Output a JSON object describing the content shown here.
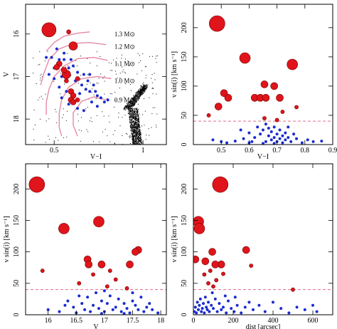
{
  "colors": {
    "big_star": "#e0141b",
    "small_star": "#1a2ccf",
    "track": "#e68aa3",
    "field": "#000000",
    "threshold": "#e06c86"
  },
  "chart_data": [
    {
      "type": "scatter",
      "panel": "top-left",
      "xlabel": "V−I",
      "ylabel": "V",
      "x_scale": "log",
      "xlim": [
        0.4,
        1.2
      ],
      "ylim": [
        18.6,
        15.3
      ],
      "xticks": [
        "0.5",
        "1"
      ],
      "yticks": [
        "16",
        "17",
        "18"
      ],
      "track_labels": [
        "1.3 M⊙",
        "1.2 M⊙",
        "1.1 M⊙",
        "1.0 M⊙",
        "0.9 M⊙"
      ],
      "tracks": [
        [
          [
            0.66,
            15.95
          ],
          [
            0.6,
            15.98
          ],
          [
            0.54,
            16.05
          ],
          [
            0.5,
            16.2
          ],
          [
            0.47,
            16.4
          ]
        ],
        [
          [
            0.75,
            16.25
          ],
          [
            0.66,
            16.2
          ],
          [
            0.58,
            16.22
          ],
          [
            0.52,
            16.35
          ],
          [
            0.48,
            16.6
          ],
          [
            0.46,
            16.95
          ],
          [
            0.45,
            17.2
          ]
        ],
        [
          [
            0.76,
            16.62
          ],
          [
            0.68,
            16.55
          ],
          [
            0.6,
            16.58
          ],
          [
            0.54,
            16.75
          ],
          [
            0.5,
            17.0
          ],
          [
            0.48,
            17.3
          ],
          [
            0.47,
            17.6
          ],
          [
            0.47,
            17.9
          ]
        ],
        [
          [
            0.78,
            17.05
          ],
          [
            0.7,
            17.0
          ],
          [
            0.62,
            17.05
          ],
          [
            0.56,
            17.25
          ],
          [
            0.53,
            17.55
          ],
          [
            0.52,
            17.85
          ],
          [
            0.52,
            18.2
          ],
          [
            0.53,
            18.4
          ]
        ],
        [
          [
            0.75,
            17.55
          ],
          [
            0.68,
            17.48
          ],
          [
            0.62,
            17.58
          ],
          [
            0.58,
            17.85
          ],
          [
            0.58,
            18.15
          ],
          [
            0.6,
            18.4
          ]
        ]
      ],
      "big_stars": [
        {
          "x": 0.48,
          "y": 15.9,
          "vsini": 207
        },
        {
          "x": 0.58,
          "y": 16.28,
          "vsini": 148
        },
        {
          "x": 0.55,
          "y": 16.95,
          "vsini": 137
        },
        {
          "x": 0.56,
          "y": 15.95,
          "vsini": 45
        },
        {
          "x": 0.52,
          "y": 16.7,
          "vsini": 88
        },
        {
          "x": 0.51,
          "y": 16.78,
          "vsini": 85
        },
        {
          "x": 0.54,
          "y": 16.85,
          "vsini": 80
        },
        {
          "x": 0.57,
          "y": 17.35,
          "vsini": 103
        },
        {
          "x": 0.58,
          "y": 17.45,
          "vsini": 80
        },
        {
          "x": 0.57,
          "y": 17.55,
          "vsini": 80
        },
        {
          "x": 0.58,
          "y": 17.6,
          "vsini": 100
        },
        {
          "x": 0.6,
          "y": 17.55,
          "vsini": 64
        },
        {
          "x": 0.6,
          "y": 17.05,
          "vsini": 56
        },
        {
          "x": 0.55,
          "y": 17.1,
          "vsini": 50
        }
      ],
      "small_stars": [
        [
          0.47,
          16.55
        ],
        [
          0.49,
          16.55
        ],
        [
          0.52,
          16.6
        ],
        [
          0.54,
          16.6
        ],
        [
          0.5,
          16.8
        ],
        [
          0.48,
          16.95
        ],
        [
          0.53,
          17.0
        ],
        [
          0.56,
          16.8
        ],
        [
          0.58,
          16.75
        ],
        [
          0.6,
          16.9
        ],
        [
          0.63,
          16.95
        ],
        [
          0.66,
          16.95
        ],
        [
          0.62,
          17.2
        ],
        [
          0.64,
          17.3
        ],
        [
          0.66,
          17.35
        ],
        [
          0.69,
          17.35
        ],
        [
          0.7,
          17.45
        ],
        [
          0.72,
          17.5
        ],
        [
          0.55,
          17.35
        ],
        [
          0.53,
          17.5
        ],
        [
          0.56,
          17.65
        ],
        [
          0.6,
          17.75
        ],
        [
          0.63,
          17.8
        ],
        [
          0.52,
          17.25
        ],
        [
          0.5,
          17.05
        ],
        [
          0.59,
          17.1
        ],
        [
          0.61,
          17.4
        ],
        [
          0.67,
          17.6
        ],
        [
          0.7,
          17.7
        ],
        [
          0.74,
          17.6
        ],
        [
          0.76,
          17.55
        ],
        [
          0.57,
          16.6
        ],
        [
          0.51,
          16.35
        ],
        [
          0.54,
          16.45
        ],
        [
          0.65,
          17.1
        ],
        [
          0.68,
          17.2
        ]
      ]
    },
    {
      "type": "scatter",
      "panel": "top-right",
      "xlabel": "V−I",
      "ylabel": "v sin(i) [km s⁻¹]",
      "xlim": [
        0.4,
        0.9
      ],
      "ylim": [
        0,
        240
      ],
      "xticks": [
        "0.5",
        "0.6",
        "0.7",
        "0.8",
        "0.9"
      ],
      "yticks": [
        "0",
        "50",
        "100",
        "150",
        "200"
      ],
      "threshold": 40,
      "big_stars": [
        {
          "x": 0.485,
          "y": 207,
          "size": 3
        },
        {
          "x": 0.585,
          "y": 148,
          "size": 2
        },
        {
          "x": 0.755,
          "y": 137,
          "size": 2
        },
        {
          "x": 0.51,
          "y": 88,
          "size": 1
        },
        {
          "x": 0.525,
          "y": 80,
          "size": 1
        },
        {
          "x": 0.49,
          "y": 65,
          "size": 1
        },
        {
          "x": 0.62,
          "y": 80,
          "size": 1
        },
        {
          "x": 0.64,
          "y": 80,
          "size": 1
        },
        {
          "x": 0.655,
          "y": 103,
          "size": 1
        },
        {
          "x": 0.66,
          "y": 80,
          "size": 1
        },
        {
          "x": 0.69,
          "y": 100,
          "size": 1
        },
        {
          "x": 0.71,
          "y": 80,
          "size": 1
        },
        {
          "x": 0.455,
          "y": 50,
          "size": 0
        },
        {
          "x": 0.655,
          "y": 45,
          "size": 0
        },
        {
          "x": 0.7,
          "y": 42,
          "size": 0
        },
        {
          "x": 0.72,
          "y": 56,
          "size": 0
        },
        {
          "x": 0.77,
          "y": 64,
          "size": 0
        }
      ],
      "small_stars": [
        [
          0.47,
          8
        ],
        [
          0.5,
          5
        ],
        [
          0.52,
          3
        ],
        [
          0.55,
          6
        ],
        [
          0.58,
          10
        ],
        [
          0.6,
          20
        ],
        [
          0.61,
          5
        ],
        [
          0.62,
          12
        ],
        [
          0.63,
          30
        ],
        [
          0.64,
          18
        ],
        [
          0.65,
          25
        ],
        [
          0.66,
          35
        ],
        [
          0.66,
          5
        ],
        [
          0.67,
          15
        ],
        [
          0.67,
          28
        ],
        [
          0.68,
          8
        ],
        [
          0.68,
          22
        ],
        [
          0.69,
          12
        ],
        [
          0.69,
          30
        ],
        [
          0.7,
          5
        ],
        [
          0.7,
          18
        ],
        [
          0.71,
          25
        ],
        [
          0.71,
          10
        ],
        [
          0.72,
          15
        ],
        [
          0.72,
          3
        ],
        [
          0.73,
          20
        ],
        [
          0.73,
          8
        ],
        [
          0.74,
          12
        ],
        [
          0.75,
          5
        ],
        [
          0.76,
          18
        ],
        [
          0.77,
          10
        ],
        [
          0.79,
          3
        ],
        [
          0.81,
          8
        ],
        [
          0.83,
          5
        ],
        [
          0.86,
          6
        ],
        [
          0.6,
          3
        ],
        [
          0.57,
          25
        ],
        [
          0.65,
          2
        ],
        [
          0.69,
          2
        ],
        [
          0.74,
          30
        ]
      ]
    },
    {
      "type": "scatter",
      "panel": "bottom-left",
      "xlabel": "V",
      "ylabel": "v sin(i) [km s⁻¹]",
      "xlim": [
        15.6,
        18.1
      ],
      "ylim": [
        0,
        240
      ],
      "xticks": [
        "16",
        "16.5",
        "17",
        "17.5",
        "18"
      ],
      "yticks": [
        "0",
        "50",
        "100",
        "150",
        "200"
      ],
      "threshold": 40,
      "big_stars": [
        {
          "x": 15.8,
          "y": 207,
          "size": 3
        },
        {
          "x": 16.9,
          "y": 148,
          "size": 2
        },
        {
          "x": 16.28,
          "y": 137,
          "size": 2
        },
        {
          "x": 17.6,
          "y": 103,
          "size": 1
        },
        {
          "x": 17.55,
          "y": 100,
          "size": 1
        },
        {
          "x": 16.7,
          "y": 88,
          "size": 1
        },
        {
          "x": 16.72,
          "y": 80,
          "size": 1
        },
        {
          "x": 16.95,
          "y": 80,
          "size": 1
        },
        {
          "x": 17.45,
          "y": 80,
          "size": 1
        },
        {
          "x": 15.9,
          "y": 70,
          "size": 0
        },
        {
          "x": 16.8,
          "y": 64,
          "size": 0
        },
        {
          "x": 17.1,
          "y": 70,
          "size": 0
        },
        {
          "x": 17.2,
          "y": 56,
          "size": 0
        },
        {
          "x": 16.55,
          "y": 50,
          "size": 0
        },
        {
          "x": 17.05,
          "y": 45,
          "size": 0
        },
        {
          "x": 17.4,
          "y": 42,
          "size": 0
        }
      ],
      "small_stars": [
        [
          16.0,
          8
        ],
        [
          16.2,
          5
        ],
        [
          16.35,
          22
        ],
        [
          16.45,
          12
        ],
        [
          16.5,
          3
        ],
        [
          16.6,
          18
        ],
        [
          16.65,
          8
        ],
        [
          16.7,
          28
        ],
        [
          16.75,
          5
        ],
        [
          16.8,
          15
        ],
        [
          16.85,
          35
        ],
        [
          16.9,
          10
        ],
        [
          16.95,
          22
        ],
        [
          17.0,
          5
        ],
        [
          17.05,
          18
        ],
        [
          17.1,
          30
        ],
        [
          17.15,
          8
        ],
        [
          17.2,
          12
        ],
        [
          17.25,
          25
        ],
        [
          17.3,
          5
        ],
        [
          17.35,
          18
        ],
        [
          17.4,
          10
        ],
        [
          17.45,
          3
        ],
        [
          17.5,
          22
        ],
        [
          17.55,
          15
        ],
        [
          17.6,
          8
        ],
        [
          17.65,
          28
        ],
        [
          17.7,
          5
        ],
        [
          17.75,
          12
        ],
        [
          17.85,
          8
        ],
        [
          17.95,
          3
        ],
        [
          16.3,
          15
        ],
        [
          16.55,
          30
        ],
        [
          17.0,
          38
        ],
        [
          17.5,
          35
        ],
        [
          17.8,
          18
        ],
        [
          16.95,
          2
        ],
        [
          17.35,
          2
        ]
      ]
    },
    {
      "type": "scatter",
      "panel": "bottom-right",
      "xlabel": "dist [arcsec]",
      "ylabel": "v sin(i) [km s⁻¹]",
      "xlim": [
        0,
        700
      ],
      "ylim": [
        0,
        240
      ],
      "xticks": [
        "0",
        "200",
        "400",
        "600"
      ],
      "yticks": [
        "0",
        "50",
        "100",
        "150",
        "200"
      ],
      "threshold": 40,
      "big_stars": [
        {
          "x": 135,
          "y": 207,
          "size": 3
        },
        {
          "x": 25,
          "y": 148,
          "size": 2
        },
        {
          "x": 30,
          "y": 137,
          "size": 2
        },
        {
          "x": 265,
          "y": 103,
          "size": 1
        },
        {
          "x": 95,
          "y": 100,
          "size": 1
        },
        {
          "x": 10,
          "y": 88,
          "size": 1
        },
        {
          "x": 60,
          "y": 85,
          "size": 1
        },
        {
          "x": 140,
          "y": 80,
          "size": 1
        },
        {
          "x": 110,
          "y": 80,
          "size": 1
        },
        {
          "x": 85,
          "y": 70,
          "size": 0
        },
        {
          "x": 55,
          "y": 64,
          "size": 0
        },
        {
          "x": 150,
          "y": 65,
          "size": 0
        },
        {
          "x": 290,
          "y": 78,
          "size": 0
        },
        {
          "x": 115,
          "y": 55,
          "size": 0
        },
        {
          "x": 75,
          "y": 50,
          "size": 0
        },
        {
          "x": 100,
          "y": 45,
          "size": 0
        },
        {
          "x": 500,
          "y": 40,
          "size": 0
        }
      ],
      "small_stars": [
        [
          5,
          5
        ],
        [
          10,
          12
        ],
        [
          15,
          3
        ],
        [
          20,
          20
        ],
        [
          25,
          8
        ],
        [
          30,
          15
        ],
        [
          35,
          25
        ],
        [
          40,
          5
        ],
        [
          45,
          10
        ],
        [
          50,
          18
        ],
        [
          55,
          3
        ],
        [
          60,
          28
        ],
        [
          65,
          12
        ],
        [
          70,
          8
        ],
        [
          75,
          20
        ],
        [
          80,
          5
        ],
        [
          90,
          15
        ],
        [
          100,
          10
        ],
        [
          110,
          25
        ],
        [
          120,
          5
        ],
        [
          130,
          18
        ],
        [
          140,
          8
        ],
        [
          150,
          12
        ],
        [
          165,
          3
        ],
        [
          175,
          22
        ],
        [
          190,
          10
        ],
        [
          205,
          5
        ],
        [
          220,
          15
        ],
        [
          240,
          3
        ],
        [
          260,
          12
        ],
        [
          280,
          20
        ],
        [
          300,
          8
        ],
        [
          330,
          15
        ],
        [
          360,
          5
        ],
        [
          400,
          20
        ],
        [
          440,
          10
        ],
        [
          480,
          3
        ],
        [
          520,
          12
        ],
        [
          560,
          8
        ],
        [
          600,
          15
        ],
        [
          620,
          5
        ],
        [
          95,
          35
        ],
        [
          160,
          30
        ],
        [
          210,
          28
        ]
      ]
    }
  ]
}
